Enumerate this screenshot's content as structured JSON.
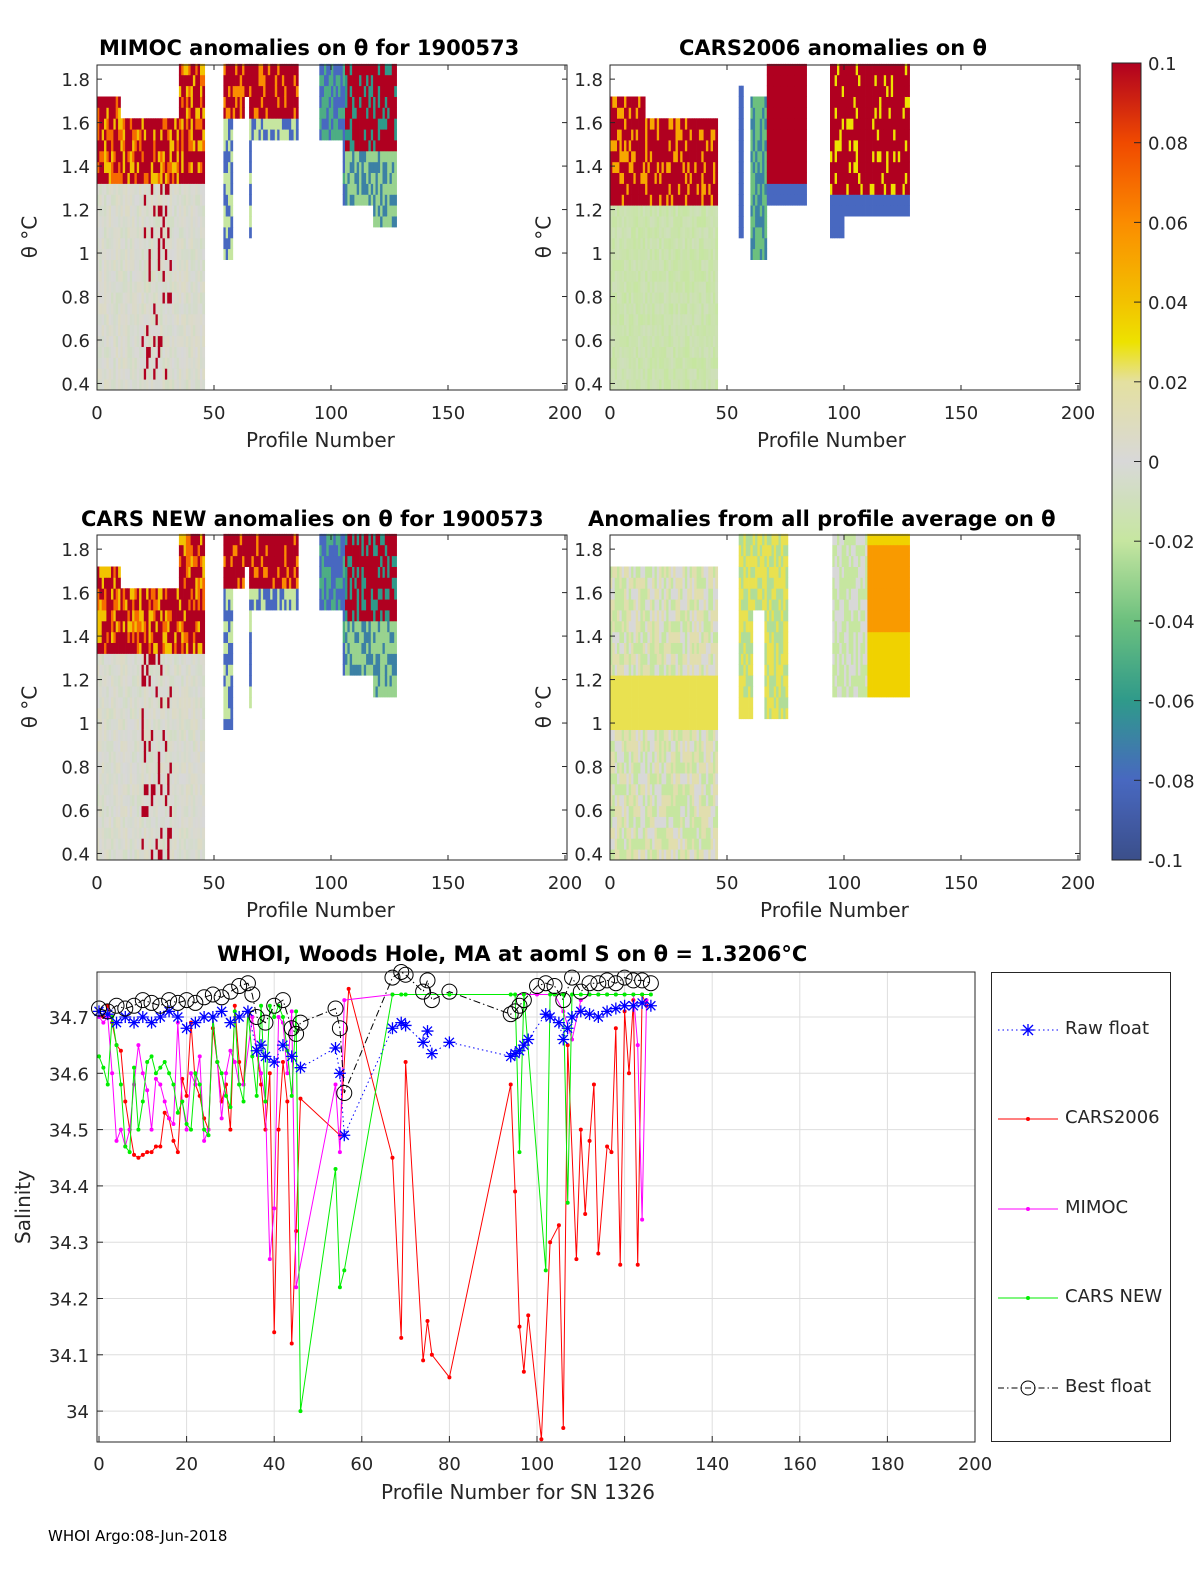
{
  "footer": "WHOI Argo:08-Jun-2018",
  "colors": {
    "raw": "#0000ff",
    "cars2006": "#ff0000",
    "mimoc": "#ff00ff",
    "carsnew": "#00ee00",
    "best": "#000000"
  },
  "chart_data": [
    {
      "type": "heatmap",
      "title": "MIMOC anomalies on θ  for 1900573",
      "xlabel": "Profile Number",
      "ylabel": "θ °C",
      "xlim": [
        0,
        200
      ],
      "ylim": [
        0.37,
        1.865
      ],
      "xticks": [
        "0",
        "50",
        "100",
        "150",
        "200"
      ],
      "yticks": [
        "0.4",
        "0.6",
        "0.8",
        "1",
        "1.2",
        "1.4",
        "1.6",
        "1.8"
      ],
      "profiles_present": [
        [
          0,
          45
        ],
        [
          54,
          85
        ],
        [
          95,
          127
        ]
      ]
    },
    {
      "type": "heatmap",
      "title": "CARS2006 anomalies on θ",
      "xlabel": "Profile Number",
      "ylabel": "θ °C",
      "xlim": [
        0,
        200
      ],
      "ylim": [
        0.37,
        1.865
      ],
      "xticks": [
        "0",
        "50",
        "100",
        "150",
        "200"
      ],
      "yticks": [
        "0.4",
        "0.6",
        "0.8",
        "1",
        "1.2",
        "1.4",
        "1.6",
        "1.8"
      ],
      "profiles_present": [
        [
          0,
          45
        ],
        [
          55,
          75
        ],
        [
          94,
          127
        ]
      ]
    },
    {
      "type": "heatmap",
      "title": "CARS NEW anomalies on θ for 1900573",
      "xlabel": "Profile Number",
      "ylabel": "θ °C",
      "xlim": [
        0,
        200
      ],
      "ylim": [
        0.37,
        1.865
      ],
      "xticks": [
        "0",
        "50",
        "100",
        "150",
        "200"
      ],
      "yticks": [
        "0.4",
        "0.6",
        "0.8",
        "1",
        "1.2",
        "1.4",
        "1.6",
        "1.8"
      ],
      "profiles_present": [
        [
          0,
          45
        ],
        [
          54,
          85
        ],
        [
          95,
          127
        ]
      ]
    },
    {
      "type": "heatmap",
      "title": "Anomalies from all profile average on θ",
      "xlabel": "Profile Number",
      "ylabel": "θ °C",
      "xlim": [
        0,
        200
      ],
      "ylim": [
        0.37,
        1.865
      ],
      "xticks": [
        "0",
        "50",
        "100",
        "150",
        "200"
      ],
      "yticks": [
        "0.4",
        "0.6",
        "0.8",
        "1",
        "1.2",
        "1.4",
        "1.6",
        "1.8"
      ],
      "profiles_present": [
        [
          0,
          45
        ],
        [
          55,
          75
        ],
        [
          94,
          127
        ]
      ]
    },
    {
      "type": "colorbar",
      "range": [
        -0.1,
        0.1
      ],
      "ticks": [
        "0.1",
        "0.08",
        "0.06",
        "0.04",
        "0.02",
        "0",
        "-0.02",
        "-0.04",
        "-0.06",
        "-0.08",
        "-0.1"
      ],
      "tick_values": [
        0.1,
        0.08,
        0.06,
        0.04,
        0.02,
        0,
        -0.02,
        -0.04,
        -0.06,
        -0.08,
        -0.1
      ]
    },
    {
      "type": "line",
      "title": "WHOI, Woods Hole, MA at aoml S on θ = 1.3206°C",
      "xlabel": "Profile Number for SN 1326",
      "ylabel": "Salinity",
      "xlim": [
        -1,
        200
      ],
      "ylim": [
        33.948,
        34.78
      ],
      "grid": true,
      "legend": "outside-right",
      "xticks": [
        "0",
        "20",
        "40",
        "60",
        "80",
        "100",
        "120",
        "140",
        "160",
        "180",
        "200"
      ],
      "yticks": [
        "34",
        "34.1",
        "34.2",
        "34.3",
        "34.4",
        "34.5",
        "34.6",
        "34.7"
      ],
      "series": [
        {
          "name": "Raw float",
          "key": "raw",
          "style": "dotted-star",
          "x": [
            0,
            2,
            4,
            6,
            8,
            10,
            12,
            14,
            16,
            18,
            20,
            22,
            24,
            26,
            28,
            30,
            32,
            34,
            36,
            37,
            38,
            40,
            42,
            44,
            46,
            54,
            55,
            56,
            67,
            69,
            70,
            74,
            75,
            76,
            80,
            94,
            95,
            96,
            97,
            98,
            102,
            103,
            105,
            106,
            107,
            108,
            110,
            112,
            114,
            116,
            118,
            120,
            122,
            124,
            126
          ],
          "y": [
            34.71,
            34.705,
            34.69,
            34.7,
            34.69,
            34.7,
            34.69,
            34.7,
            34.71,
            34.7,
            34.68,
            34.69,
            34.7,
            34.7,
            34.71,
            34.69,
            34.7,
            34.71,
            34.64,
            34.65,
            34.63,
            34.62,
            34.65,
            34.63,
            34.61,
            34.645,
            34.6,
            34.49,
            34.68,
            34.69,
            34.685,
            34.655,
            34.675,
            34.635,
            34.655,
            34.63,
            34.635,
            34.64,
            34.65,
            34.66,
            34.705,
            34.7,
            34.69,
            34.66,
            34.68,
            34.7,
            34.71,
            34.705,
            34.7,
            34.71,
            34.715,
            34.72,
            34.72,
            34.725,
            34.72
          ]
        },
        {
          "name": "CARS2006",
          "key": "cars2006",
          "style": "solid-dot",
          "x": [
            0,
            1,
            2,
            3,
            4,
            5,
            6,
            7,
            8,
            9,
            10,
            11,
            12,
            13,
            14,
            15,
            16,
            17,
            18,
            19,
            20,
            21,
            22,
            23,
            24,
            25,
            26,
            27,
            28,
            29,
            30,
            31,
            32,
            33,
            34,
            35,
            36,
            37,
            38,
            39,
            40,
            41,
            42,
            43,
            44,
            45,
            46,
            55,
            57,
            67,
            69,
            70,
            74,
            75,
            76,
            80,
            94,
            95,
            96,
            97,
            98,
            101,
            103,
            105,
            106,
            107,
            109,
            110,
            111,
            112,
            113,
            114,
            116,
            117,
            118,
            119,
            120,
            121,
            122,
            123,
            124,
            125
          ],
          "y": [
            34.71,
            34.7,
            34.72,
            34.69,
            34.65,
            34.64,
            34.55,
            34.5,
            34.455,
            34.45,
            34.455,
            34.46,
            34.46,
            34.47,
            34.47,
            34.53,
            34.52,
            34.48,
            34.46,
            34.59,
            34.56,
            34.69,
            34.58,
            34.56,
            34.52,
            34.5,
            34.68,
            34.62,
            34.55,
            34.58,
            34.5,
            34.72,
            34.62,
            34.58,
            34.71,
            34.7,
            34.64,
            34.58,
            34.5,
            34.6,
            34.14,
            34.5,
            34.62,
            34.55,
            34.12,
            34.32,
            34.555,
            34.49,
            34.75,
            34.45,
            34.13,
            34.62,
            34.09,
            34.16,
            34.1,
            34.06,
            34.58,
            34.39,
            34.15,
            34.07,
            34.17,
            33.95,
            34.3,
            34.33,
            33.97,
            34.65,
            34.27,
            34.5,
            34.35,
            34.48,
            34.58,
            34.28,
            34.47,
            34.46,
            34.68,
            34.26,
            34.71,
            34.6,
            34.73,
            34.26,
            34.74,
            34.72
          ]
        },
        {
          "name": "MIMOC",
          "key": "mimoc",
          "style": "solid-dot",
          "x": [
            0,
            1,
            2,
            3,
            4,
            5,
            6,
            7,
            8,
            9,
            10,
            11,
            12,
            13,
            14,
            15,
            16,
            17,
            18,
            19,
            20,
            21,
            22,
            23,
            24,
            25,
            26,
            27,
            28,
            29,
            30,
            31,
            32,
            33,
            35,
            36,
            37,
            38,
            39,
            40,
            41,
            42,
            43,
            44,
            45,
            54,
            55,
            56,
            67,
            100,
            104,
            106,
            108,
            110,
            112,
            114,
            116,
            118,
            120,
            122,
            123,
            124,
            125
          ],
          "y": [
            34.7,
            34.69,
            34.7,
            34.6,
            34.48,
            34.5,
            34.47,
            34.5,
            34.58,
            34.65,
            34.6,
            34.57,
            34.5,
            34.59,
            34.58,
            34.55,
            34.52,
            34.51,
            34.69,
            34.55,
            34.5,
            34.6,
            34.58,
            34.63,
            34.48,
            34.5,
            34.7,
            34.62,
            34.52,
            34.6,
            34.64,
            34.62,
            34.58,
            34.58,
            34.7,
            34.64,
            34.6,
            34.55,
            34.27,
            34.36,
            34.7,
            34.69,
            34.6,
            34.71,
            34.22,
            34.58,
            34.46,
            34.73,
            34.74,
            34.74,
            34.74,
            34.71,
            34.66,
            34.73,
            34.74,
            34.74,
            34.74,
            34.74,
            34.74,
            34.74,
            34.65,
            34.34,
            34.73
          ]
        },
        {
          "name": "CARS NEW",
          "key": "carsnew",
          "style": "solid-dot",
          "x": [
            0,
            1,
            2,
            3,
            4,
            5,
            6,
            7,
            8,
            9,
            10,
            11,
            12,
            13,
            14,
            15,
            16,
            17,
            18,
            19,
            20,
            21,
            22,
            23,
            24,
            25,
            26,
            27,
            28,
            29,
            30,
            31,
            32,
            33,
            34,
            35,
            36,
            37,
            38,
            39,
            40,
            41,
            42,
            43,
            44,
            45,
            46,
            54,
            55,
            56,
            67,
            69,
            70,
            80,
            94,
            95,
            96,
            97,
            102,
            103,
            104,
            106,
            107,
            108,
            110,
            112,
            114,
            116,
            118,
            120,
            122,
            124,
            126
          ],
          "y": [
            34.63,
            34.61,
            34.58,
            34.7,
            34.65,
            34.58,
            34.47,
            34.46,
            34.61,
            34.5,
            34.55,
            34.62,
            34.63,
            34.6,
            34.61,
            34.62,
            34.6,
            34.58,
            34.53,
            34.55,
            34.51,
            34.5,
            34.6,
            34.58,
            34.5,
            34.49,
            34.7,
            34.62,
            34.6,
            34.56,
            34.54,
            34.71,
            34.58,
            34.55,
            34.71,
            34.63,
            34.56,
            34.72,
            34.55,
            34.72,
            34.7,
            34.72,
            34.7,
            34.64,
            34.56,
            34.71,
            34.0,
            34.43,
            34.22,
            34.25,
            34.74,
            34.74,
            34.74,
            34.74,
            34.74,
            34.74,
            34.46,
            34.74,
            34.25,
            34.74,
            34.74,
            34.74,
            34.37,
            34.74,
            34.74,
            34.74,
            34.74,
            34.74,
            34.74,
            34.74,
            34.74,
            34.74,
            34.74
          ]
        },
        {
          "name": "Best float",
          "key": "best",
          "style": "dashdot-circle",
          "x": [
            0,
            2,
            4,
            6,
            8,
            10,
            12,
            14,
            16,
            18,
            20,
            22,
            24,
            26,
            28,
            30,
            32,
            34,
            35,
            36,
            38,
            40,
            42,
            44,
            45,
            46,
            54,
            55,
            56,
            67,
            69,
            70,
            74,
            75,
            76,
            80,
            94,
            95,
            96,
            97,
            100,
            102,
            104,
            106,
            108,
            110,
            112,
            114,
            116,
            118,
            120,
            122,
            124,
            126
          ],
          "y": [
            34.715,
            34.71,
            34.72,
            34.715,
            34.72,
            34.73,
            34.725,
            34.72,
            34.73,
            34.725,
            34.73,
            34.725,
            34.735,
            34.74,
            34.735,
            34.745,
            34.755,
            34.76,
            34.74,
            34.7,
            34.69,
            34.72,
            34.73,
            34.68,
            34.67,
            34.69,
            34.715,
            34.68,
            34.565,
            34.77,
            34.78,
            34.775,
            34.745,
            34.765,
            34.73,
            34.745,
            34.705,
            34.71,
            34.72,
            34.73,
            34.755,
            34.76,
            34.755,
            34.73,
            34.77,
            34.745,
            34.76,
            34.76,
            34.765,
            34.76,
            34.77,
            34.765,
            34.765,
            34.76
          ]
        }
      ]
    }
  ]
}
